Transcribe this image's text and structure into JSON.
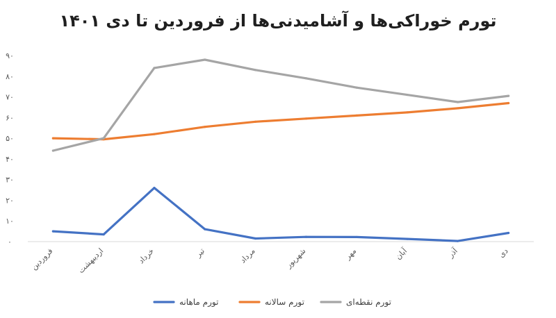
{
  "chart_data": {
    "type": "line",
    "title": "تورم خوراکی‌ها و آشامیدنی‌ها از فروردین تا دی ۱۴۰۱",
    "xlabel": "",
    "ylabel": "",
    "ylim": [
      0,
      90
    ],
    "yticks": [
      0,
      10,
      20,
      30,
      40,
      50,
      60,
      70,
      80,
      90
    ],
    "ytick_labels": [
      "۰",
      "۱۰",
      "۲۰",
      "۳۰",
      "۴۰",
      "۵۰",
      "۶۰",
      "۷۰",
      "۸۰",
      "۹۰"
    ],
    "categories": [
      "فروردین",
      "اردیبهشت",
      "خرداد",
      "تیر",
      "مرداد",
      "شهریور",
      "مهر",
      "آبان",
      "آذر",
      "دی"
    ],
    "grid": false,
    "legend_position": "bottom",
    "series": [
      {
        "name": "تورم ماهانه",
        "color": "#4472c4",
        "values": [
          5,
          3.5,
          26,
          6,
          1.5,
          2.3,
          2.2,
          1.3,
          0.3,
          4.2
        ]
      },
      {
        "name": "تورم سالانه",
        "color": "#ed7d31",
        "values": [
          50,
          49.5,
          52,
          55.5,
          58,
          59.5,
          61,
          62.5,
          64.5,
          67
        ]
      },
      {
        "name": "تورم نقطه‌ای",
        "color": "#a5a5a5",
        "values": [
          44,
          50,
          84,
          88,
          83,
          79,
          74.5,
          71,
          67.5,
          70.5
        ]
      }
    ]
  }
}
